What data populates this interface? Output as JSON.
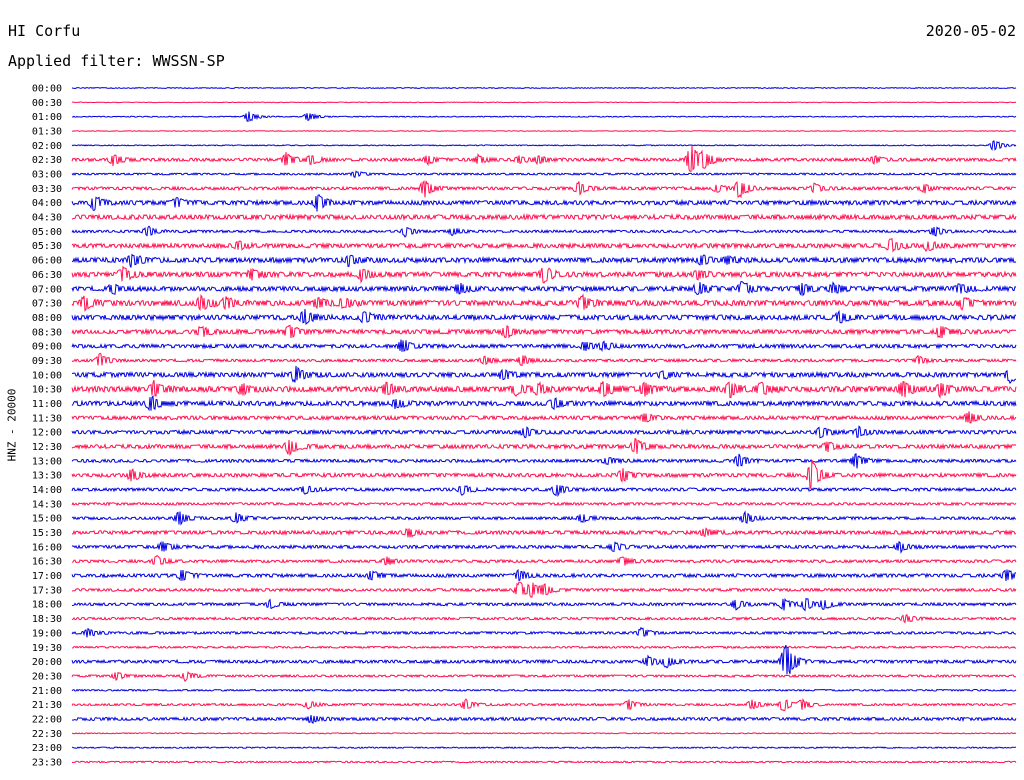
{
  "header": {
    "station": "HI Corfu",
    "date": "2020-05-02",
    "filter_label": "Applied filter: WWSSN-SP",
    "channel_label": "HNZ - 20000"
  },
  "colors": {
    "odd": "#0000e0",
    "even": "#ff1050"
  },
  "chart_data": {
    "type": "line",
    "title": "",
    "xlabel": "",
    "ylabel": "HNZ - 20000",
    "row_labels": [
      "00:00",
      "00:30",
      "01:00",
      "01:30",
      "02:00",
      "02:30",
      "03:00",
      "03:30",
      "04:00",
      "04:30",
      "05:00",
      "05:30",
      "06:00",
      "06:30",
      "07:00",
      "07:30",
      "08:00",
      "08:30",
      "09:00",
      "09:30",
      "10:00",
      "10:30",
      "11:00",
      "11:30",
      "12:00",
      "12:30",
      "13:00",
      "13:30",
      "14:00",
      "14:30",
      "15:00",
      "15:30",
      "16:00",
      "16:30",
      "17:00",
      "17:30",
      "18:00",
      "18:30",
      "19:00",
      "19:30",
      "20:00",
      "20:30",
      "21:00",
      "21:30",
      "22:00",
      "22:30",
      "23:00",
      "23:30"
    ],
    "minutes_per_row": 30,
    "noise": [
      0.3,
      0.2,
      0.3,
      0.2,
      0.3,
      1.0,
      0.6,
      1.0,
      1.4,
      1.5,
      0.8,
      1.4,
      1.6,
      1.6,
      1.5,
      1.8,
      1.6,
      1.4,
      1.2,
      0.9,
      1.5,
      1.8,
      1.5,
      1.2,
      1.2,
      1.3,
      1.0,
      1.2,
      1.0,
      0.8,
      0.9,
      1.2,
      1.0,
      0.9,
      1.1,
      0.9,
      0.9,
      0.8,
      0.8,
      0.6,
      1.0,
      0.7,
      0.5,
      0.7,
      1.0,
      0.3,
      0.4,
      0.5
    ],
    "events": [
      {
        "row": 2,
        "t": 5.6,
        "a": 6
      },
      {
        "row": 2,
        "t": 7.5,
        "a": 5
      },
      {
        "row": 4,
        "t": 29.3,
        "a": 6
      },
      {
        "row": 5,
        "t": 1.3,
        "a": 6
      },
      {
        "row": 5,
        "t": 6.8,
        "a": 7
      },
      {
        "row": 5,
        "t": 7.6,
        "a": 5
      },
      {
        "row": 5,
        "t": 11.3,
        "a": 4
      },
      {
        "row": 5,
        "t": 12.9,
        "a": 4
      },
      {
        "row": 5,
        "t": 14.2,
        "a": 4
      },
      {
        "row": 5,
        "t": 14.8,
        "a": 4
      },
      {
        "row": 5,
        "t": 19.6,
        "a": 5
      },
      {
        "row": 5,
        "t": 19.7,
        "a": 12
      },
      {
        "row": 5,
        "t": 20.1,
        "a": 7
      },
      {
        "row": 5,
        "t": 25.5,
        "a": 4
      },
      {
        "row": 6,
        "t": 9.0,
        "a": 3
      },
      {
        "row": 7,
        "t": 11.2,
        "a": 9
      },
      {
        "row": 7,
        "t": 16.1,
        "a": 6
      },
      {
        "row": 7,
        "t": 20.5,
        "a": 4
      },
      {
        "row": 7,
        "t": 21.2,
        "a": 10
      },
      {
        "row": 7,
        "t": 23.6,
        "a": 5
      },
      {
        "row": 7,
        "t": 27.1,
        "a": 4
      },
      {
        "row": 8,
        "t": 0.7,
        "a": 7
      },
      {
        "row": 8,
        "t": 3.3,
        "a": 5
      },
      {
        "row": 8,
        "t": 7.8,
        "a": 8
      },
      {
        "row": 10,
        "t": 2.4,
        "a": 5
      },
      {
        "row": 10,
        "t": 10.6,
        "a": 5
      },
      {
        "row": 10,
        "t": 12.1,
        "a": 4
      },
      {
        "row": 10,
        "t": 27.4,
        "a": 5
      },
      {
        "row": 11,
        "t": 5.3,
        "a": 4
      },
      {
        "row": 11,
        "t": 26.0,
        "a": 7
      },
      {
        "row": 11,
        "t": 27.2,
        "a": 5
      },
      {
        "row": 12,
        "t": 1.9,
        "a": 6
      },
      {
        "row": 12,
        "t": 8.8,
        "a": 5
      },
      {
        "row": 12,
        "t": 20.0,
        "a": 5
      },
      {
        "row": 12,
        "t": 20.8,
        "a": 4
      },
      {
        "row": 13,
        "t": 1.6,
        "a": 7
      },
      {
        "row": 13,
        "t": 5.7,
        "a": 5
      },
      {
        "row": 13,
        "t": 9.2,
        "a": 6
      },
      {
        "row": 13,
        "t": 15.0,
        "a": 8
      },
      {
        "row": 13,
        "t": 19.9,
        "a": 4
      },
      {
        "row": 14,
        "t": 1.3,
        "a": 5
      },
      {
        "row": 14,
        "t": 12.3,
        "a": 5
      },
      {
        "row": 14,
        "t": 19.9,
        "a": 6
      },
      {
        "row": 14,
        "t": 21.3,
        "a": 7
      },
      {
        "row": 14,
        "t": 23.2,
        "a": 6
      },
      {
        "row": 14,
        "t": 24.2,
        "a": 5
      },
      {
        "row": 14,
        "t": 28.2,
        "a": 5
      },
      {
        "row": 15,
        "t": 0.4,
        "a": 6
      },
      {
        "row": 15,
        "t": 4.1,
        "a": 7
      },
      {
        "row": 15,
        "t": 4.9,
        "a": 5
      },
      {
        "row": 15,
        "t": 7.8,
        "a": 5
      },
      {
        "row": 15,
        "t": 8.6,
        "a": 5
      },
      {
        "row": 15,
        "t": 16.2,
        "a": 7
      },
      {
        "row": 15,
        "t": 28.3,
        "a": 5
      },
      {
        "row": 16,
        "t": 7.4,
        "a": 7
      },
      {
        "row": 16,
        "t": 9.3,
        "a": 5
      },
      {
        "row": 16,
        "t": 24.4,
        "a": 5
      },
      {
        "row": 17,
        "t": 4.1,
        "a": 5
      },
      {
        "row": 17,
        "t": 6.9,
        "a": 7
      },
      {
        "row": 17,
        "t": 13.8,
        "a": 6
      },
      {
        "row": 17,
        "t": 27.6,
        "a": 6
      },
      {
        "row": 18,
        "t": 10.5,
        "a": 7
      },
      {
        "row": 18,
        "t": 16.3,
        "a": 4
      },
      {
        "row": 18,
        "t": 16.9,
        "a": 4
      },
      {
        "row": 19,
        "t": 0.9,
        "a": 7
      },
      {
        "row": 19,
        "t": 13.1,
        "a": 4
      },
      {
        "row": 19,
        "t": 14.3,
        "a": 5
      },
      {
        "row": 19,
        "t": 26.9,
        "a": 4
      },
      {
        "row": 20,
        "t": 7.1,
        "a": 8
      },
      {
        "row": 20,
        "t": 13.7,
        "a": 5
      },
      {
        "row": 20,
        "t": 18.8,
        "a": 4
      },
      {
        "row": 20,
        "t": 29.8,
        "a": 8
      },
      {
        "row": 21,
        "t": 2.6,
        "a": 7
      },
      {
        "row": 21,
        "t": 5.4,
        "a": 5
      },
      {
        "row": 21,
        "t": 10.0,
        "a": 6
      },
      {
        "row": 21,
        "t": 14.1,
        "a": 6
      },
      {
        "row": 21,
        "t": 14.8,
        "a": 5
      },
      {
        "row": 21,
        "t": 16.9,
        "a": 8
      },
      {
        "row": 21,
        "t": 18.2,
        "a": 7
      },
      {
        "row": 21,
        "t": 20.9,
        "a": 8
      },
      {
        "row": 21,
        "t": 21.9,
        "a": 6
      },
      {
        "row": 21,
        "t": 26.4,
        "a": 8
      },
      {
        "row": 21,
        "t": 27.6,
        "a": 7
      },
      {
        "row": 22,
        "t": 2.5,
        "a": 8
      },
      {
        "row": 22,
        "t": 10.3,
        "a": 5
      },
      {
        "row": 22,
        "t": 15.3,
        "a": 5
      },
      {
        "row": 23,
        "t": 18.2,
        "a": 5
      },
      {
        "row": 23,
        "t": 28.5,
        "a": 6
      },
      {
        "row": 24,
        "t": 14.4,
        "a": 5
      },
      {
        "row": 24,
        "t": 23.8,
        "a": 5
      },
      {
        "row": 24,
        "t": 25.0,
        "a": 5
      },
      {
        "row": 25,
        "t": 6.9,
        "a": 8
      },
      {
        "row": 25,
        "t": 17.9,
        "a": 8
      },
      {
        "row": 25,
        "t": 24.0,
        "a": 5
      },
      {
        "row": 26,
        "t": 17.0,
        "a": 4
      },
      {
        "row": 26,
        "t": 21.2,
        "a": 6
      },
      {
        "row": 26,
        "t": 24.9,
        "a": 8
      },
      {
        "row": 27,
        "t": 1.9,
        "a": 6
      },
      {
        "row": 27,
        "t": 17.5,
        "a": 7
      },
      {
        "row": 27,
        "t": 23.5,
        "a": 16
      },
      {
        "row": 28,
        "t": 7.4,
        "a": 4
      },
      {
        "row": 28,
        "t": 12.4,
        "a": 5
      },
      {
        "row": 28,
        "t": 15.4,
        "a": 6
      },
      {
        "row": 30,
        "t": 3.4,
        "a": 7
      },
      {
        "row": 30,
        "t": 5.2,
        "a": 5
      },
      {
        "row": 30,
        "t": 16.2,
        "a": 4
      },
      {
        "row": 30,
        "t": 21.4,
        "a": 6
      },
      {
        "row": 31,
        "t": 10.7,
        "a": 4
      },
      {
        "row": 31,
        "t": 20.1,
        "a": 4
      },
      {
        "row": 32,
        "t": 2.9,
        "a": 5
      },
      {
        "row": 32,
        "t": 17.2,
        "a": 5
      },
      {
        "row": 32,
        "t": 26.3,
        "a": 5
      },
      {
        "row": 33,
        "t": 2.7,
        "a": 5
      },
      {
        "row": 33,
        "t": 10.0,
        "a": 4
      },
      {
        "row": 33,
        "t": 17.5,
        "a": 5
      },
      {
        "row": 34,
        "t": 3.5,
        "a": 6
      },
      {
        "row": 34,
        "t": 9.5,
        "a": 5
      },
      {
        "row": 34,
        "t": 14.2,
        "a": 5
      },
      {
        "row": 34,
        "t": 29.7,
        "a": 6
      },
      {
        "row": 35,
        "t": 14.2,
        "a": 8
      },
      {
        "row": 35,
        "t": 14.6,
        "a": 7
      },
      {
        "row": 35,
        "t": 15.0,
        "a": 5
      },
      {
        "row": 36,
        "t": 6.3,
        "a": 4
      },
      {
        "row": 36,
        "t": 21.1,
        "a": 5
      },
      {
        "row": 36,
        "t": 22.6,
        "a": 6
      },
      {
        "row": 36,
        "t": 23.3,
        "a": 6
      },
      {
        "row": 36,
        "t": 23.9,
        "a": 5
      },
      {
        "row": 37,
        "t": 26.5,
        "a": 4
      },
      {
        "row": 38,
        "t": 0.5,
        "a": 4
      },
      {
        "row": 38,
        "t": 18.1,
        "a": 5
      },
      {
        "row": 40,
        "t": 18.3,
        "a": 5
      },
      {
        "row": 40,
        "t": 18.9,
        "a": 6
      },
      {
        "row": 40,
        "t": 22.6,
        "a": 6
      },
      {
        "row": 40,
        "t": 22.7,
        "a": 15
      },
      {
        "row": 41,
        "t": 1.4,
        "a": 4
      },
      {
        "row": 41,
        "t": 3.6,
        "a": 5
      },
      {
        "row": 43,
        "t": 7.5,
        "a": 4
      },
      {
        "row": 43,
        "t": 12.5,
        "a": 5
      },
      {
        "row": 43,
        "t": 17.7,
        "a": 5
      },
      {
        "row": 43,
        "t": 21.6,
        "a": 5
      },
      {
        "row": 43,
        "t": 22.6,
        "a": 7
      },
      {
        "row": 43,
        "t": 23.2,
        "a": 5
      },
      {
        "row": 44,
        "t": 7.6,
        "a": 4
      }
    ]
  }
}
